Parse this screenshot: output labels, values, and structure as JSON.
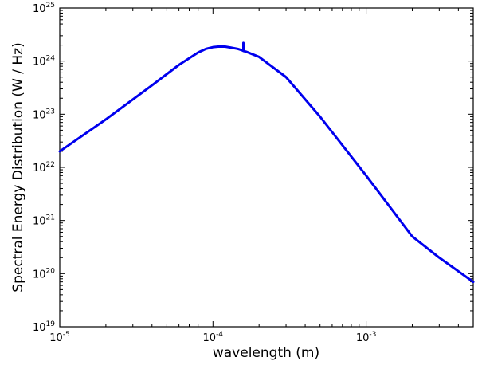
{
  "chart_data": {
    "type": "line",
    "title": "",
    "xlabel": "wavelength (m)",
    "ylabel": "Spectral Energy Distribution (W / Hz)",
    "x_scale": "log",
    "y_scale": "log",
    "xlim": [
      1e-05,
      0.005
    ],
    "ylim": [
      1e+19,
      1e+25
    ],
    "grid": false,
    "legend": "none",
    "x_ticks": [
      {
        "base": "10",
        "exp": "-5",
        "value": 1e-05
      },
      {
        "base": "10",
        "exp": "-4",
        "value": 0.0001
      },
      {
        "base": "10",
        "exp": "-3",
        "value": 0.001
      }
    ],
    "y_ticks": [
      {
        "base": "10",
        "exp": "19",
        "value": 1e+19
      },
      {
        "base": "10",
        "exp": "20",
        "value": 1e+20
      },
      {
        "base": "10",
        "exp": "21",
        "value": 1e+21
      },
      {
        "base": "10",
        "exp": "22",
        "value": 1e+22
      },
      {
        "base": "10",
        "exp": "23",
        "value": 1e+23
      },
      {
        "base": "10",
        "exp": "24",
        "value": 1e+24
      },
      {
        "base": "10",
        "exp": "25",
        "value": 1e+25
      }
    ],
    "series": [
      {
        "color": "#0000ee",
        "x": [
          1e-05,
          2e-05,
          4e-05,
          6e-05,
          8e-05,
          9e-05,
          0.0001,
          0.00011,
          0.00012,
          0.00013,
          0.000145,
          0.000155,
          0.000158,
          0.000158,
          0.000158,
          0.000165,
          0.0002,
          0.0003,
          0.0005,
          0.001,
          0.002,
          0.003,
          0.005
        ],
        "y": [
          2e+22,
          8e+22,
          3.5e+23,
          8.5e+23,
          1.45e+24,
          1.7e+24,
          1.83e+24,
          1.88e+24,
          1.87e+24,
          1.8e+24,
          1.7e+24,
          1.6e+24,
          1.55e+24,
          2.2e+24,
          1.55e+24,
          1.5e+24,
          1.2e+24,
          5e+23,
          9e+22,
          7e+21,
          5e+20,
          2e+20,
          7e+19
        ]
      }
    ]
  }
}
